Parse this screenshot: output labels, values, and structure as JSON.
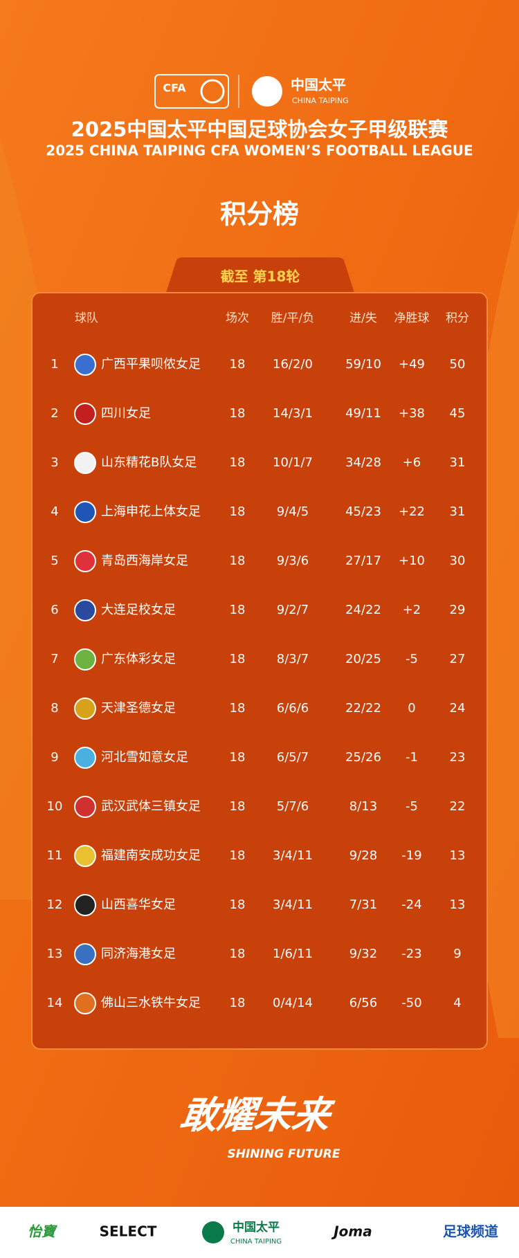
{
  "header": {
    "cfa_logo": "CFA",
    "sponsor_logo": "中国太平",
    "sponsor_logo_en": "CHINA TAIPING",
    "title": "2025中国太平中国足球协会女子甲级联赛",
    "subtitle": "2025 CHINA TAIPING CFA WOMEN’S FOOTBALL LEAGUE",
    "heading": "积分榜",
    "round": "截至 第18轮"
  },
  "table": {
    "columns": [
      "球队",
      "场次",
      "胜/平/负",
      "进/失",
      "净胜球",
      "积分"
    ],
    "rows": [
      [
        1,
        "广西平果呗侬女足",
        18,
        "16/2/0",
        "59/10",
        "+49",
        50
      ],
      [
        2,
        "四川女足",
        18,
        "14/3/1",
        "49/11",
        "+38",
        45
      ],
      [
        3,
        "山东精花B队女足",
        18,
        "10/1/7",
        "34/28",
        "+6",
        31
      ],
      [
        4,
        "上海申花上体女足",
        18,
        "9/4/5",
        "45/23",
        "+22",
        31
      ],
      [
        5,
        "青岛西海岸女足",
        18,
        "9/3/6",
        "27/17",
        "+10",
        30
      ],
      [
        6,
        "大连足校女足",
        18,
        "9/2/7",
        "24/22",
        "+2",
        29
      ],
      [
        7,
        "广东体彩女足",
        18,
        "8/3/7",
        "20/25",
        "-5",
        27
      ],
      [
        8,
        "天津圣德女足",
        18,
        "6/6/6",
        "22/22",
        "0",
        24
      ],
      [
        9,
        "河北雪如意女足",
        18,
        "6/5/7",
        "25/26",
        "-1",
        23
      ],
      [
        10,
        "武汉武体三镇女足",
        18,
        "5/7/6",
        "8/13",
        "-5",
        22
      ],
      [
        11,
        "福建南安成功女足",
        18,
        "3/4/11",
        "9/28",
        "-19",
        13
      ],
      [
        12,
        "山西喜华女足",
        18,
        "3/4/11",
        "7/31",
        "-24",
        13
      ],
      [
        13,
        "同济海港女足",
        18,
        "1/6/11",
        "9/32",
        "-23",
        9
      ],
      [
        14,
        "佛山三水铁牛女足",
        18,
        "0/4/14",
        "6/56",
        "-50",
        4
      ]
    ]
  },
  "slogan": {
    "main": "敢耀未来",
    "sub": "SHINING FUTURE"
  },
  "footer": {
    "sponsors": [
      "怡寶",
      "SELECT",
      "中国太平",
      "Joma",
      "足球频道"
    ],
    "sponsor_sub": "CHINA TAIPING"
  }
}
